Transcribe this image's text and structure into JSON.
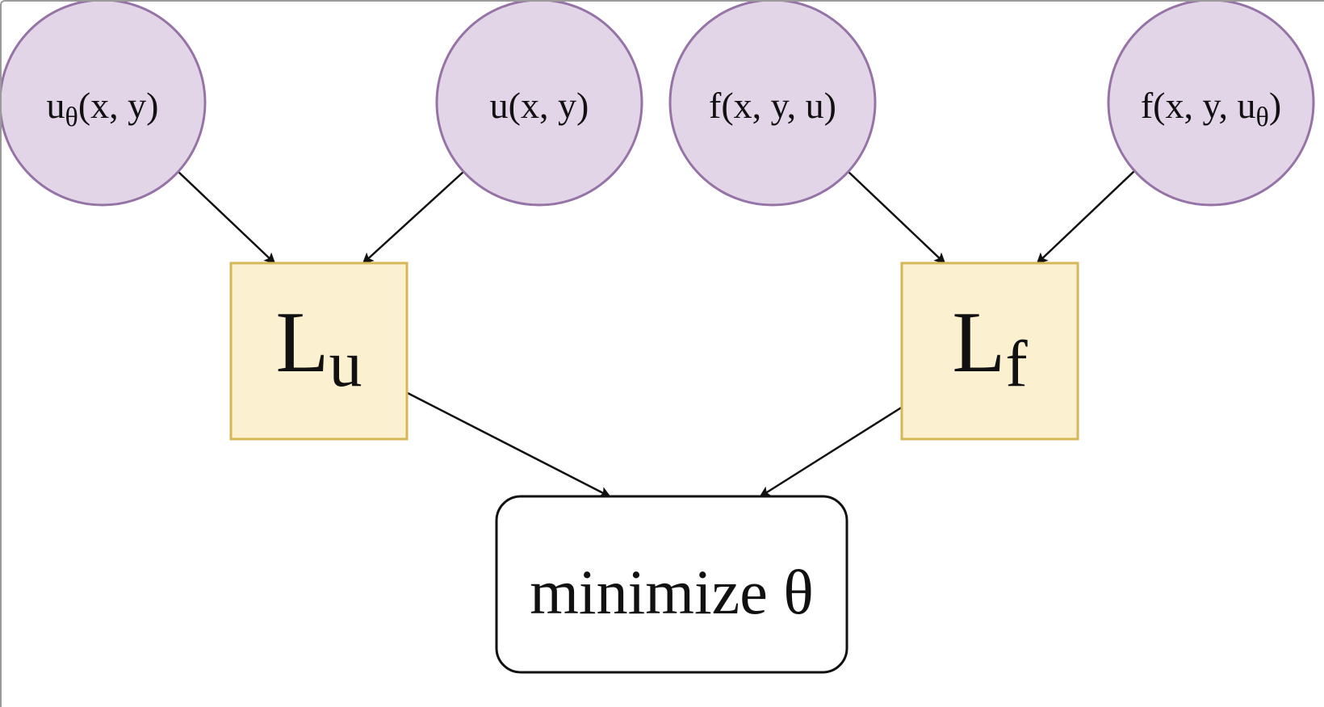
{
  "diagram": {
    "colors": {
      "input_fill": "#e1d5e7",
      "input_stroke": "#9673a6",
      "loss_fill": "#fbf1d1",
      "loss_stroke": "#d6b656",
      "output_fill": "#ffffff",
      "output_stroke": "#111111",
      "edge": "#111111"
    },
    "inputs": {
      "u_theta": {
        "base": "u",
        "sub": "θ",
        "tail": "(x, y)"
      },
      "u_true": {
        "text": "u(x, y)"
      },
      "f_true": {
        "text": "f(x, y, u)"
      },
      "f_theta": {
        "head": "f(x, y, u",
        "sub": "θ",
        "tail": ")"
      }
    },
    "losses": {
      "Lu": {
        "base": "L",
        "sub": "u"
      },
      "Lf": {
        "base": "L",
        "sub": "f"
      }
    },
    "output": {
      "text": "minimize θ"
    },
    "edges": [
      {
        "from": "u_theta",
        "to": "Lu"
      },
      {
        "from": "u_true",
        "to": "Lu"
      },
      {
        "from": "f_true",
        "to": "Lf"
      },
      {
        "from": "f_theta",
        "to": "Lf"
      },
      {
        "from": "Lu",
        "to": "output"
      },
      {
        "from": "Lf",
        "to": "output"
      }
    ]
  }
}
